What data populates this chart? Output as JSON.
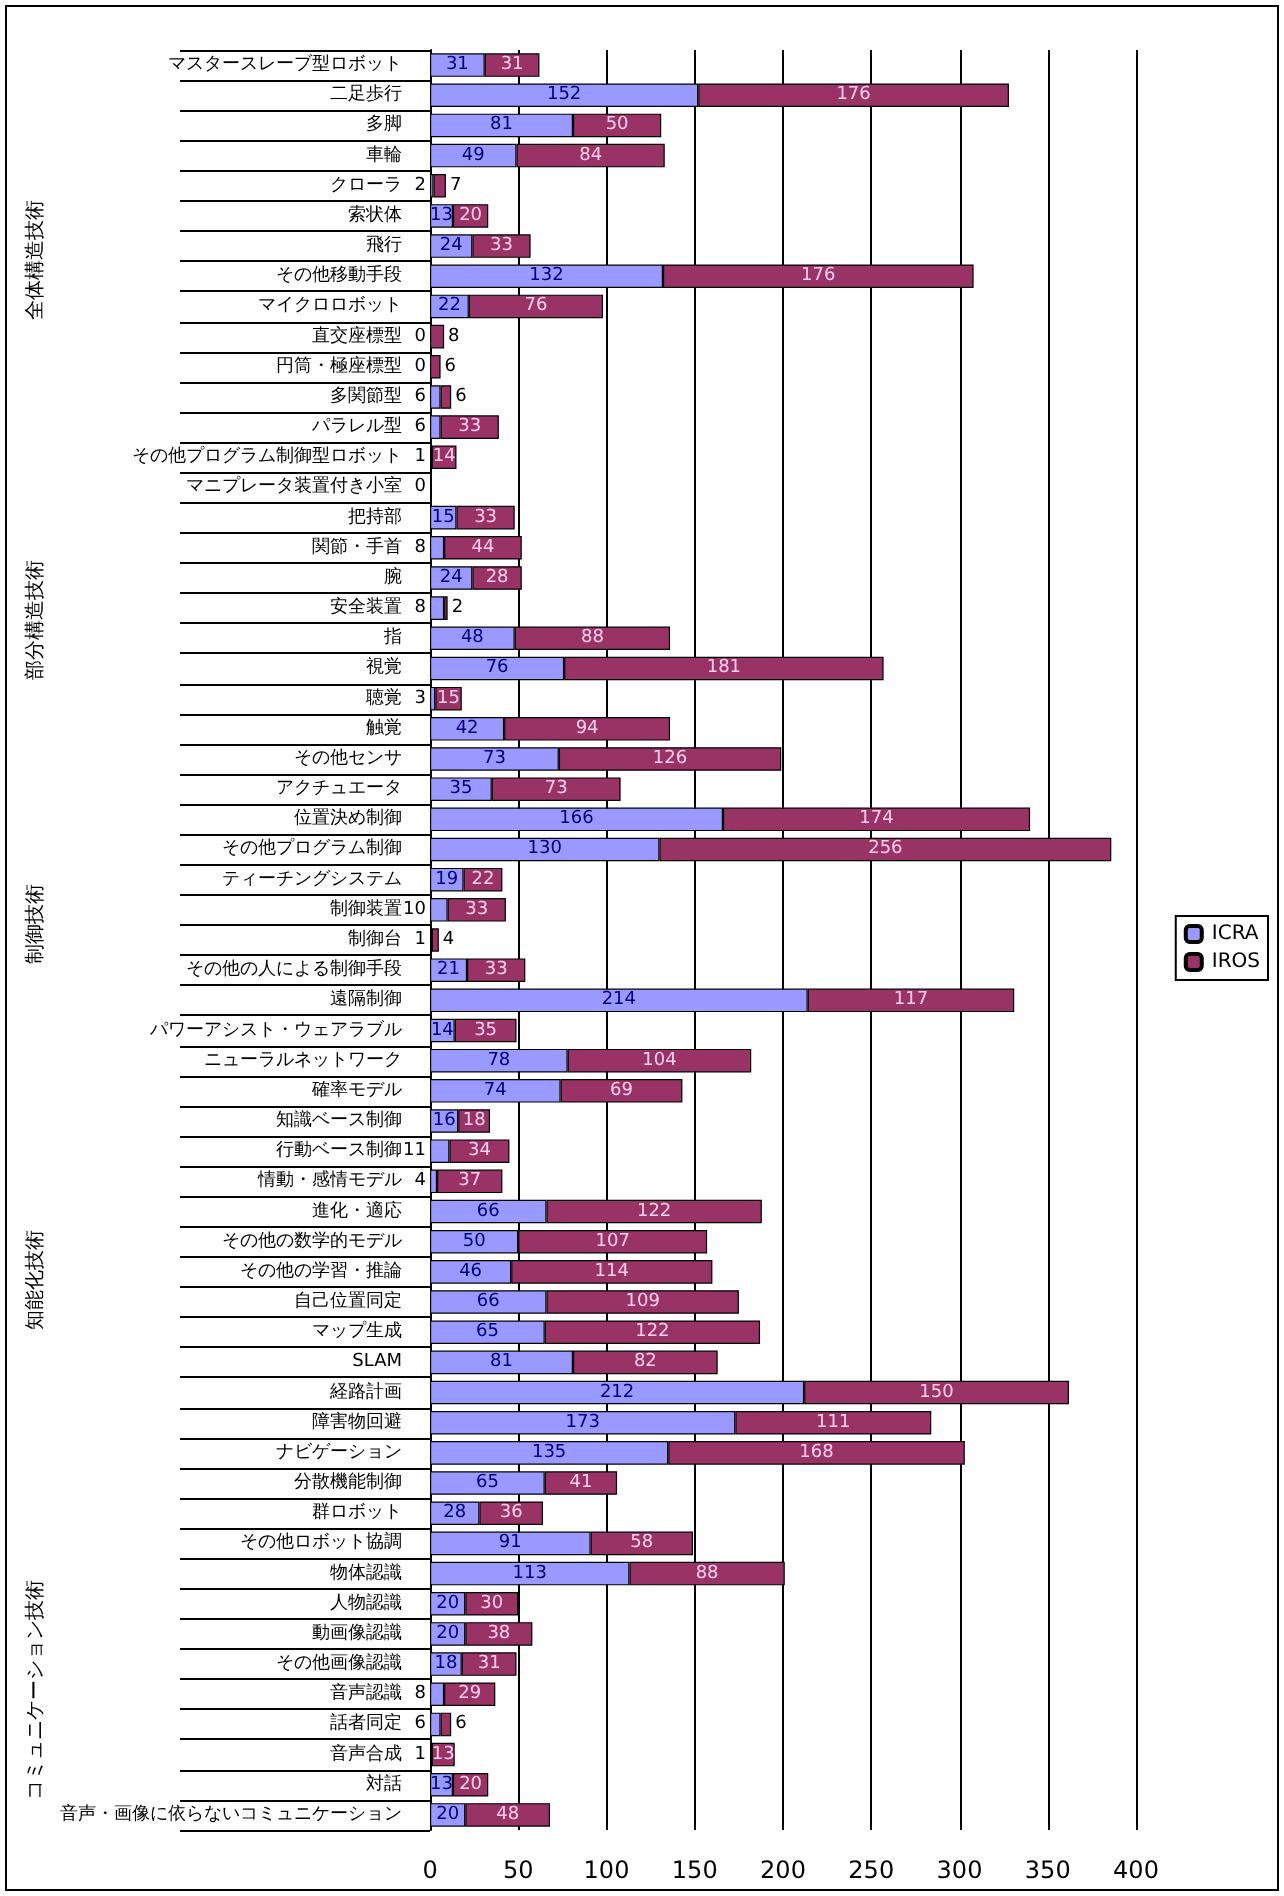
{
  "chart_data": {
    "type": "bar",
    "orientation": "horizontal",
    "stacked": true,
    "grid": "x",
    "legend": "right",
    "categories": [
      "マスタースレーブ型ロボット",
      "二足歩行",
      "多脚",
      "車輪",
      "クローラ",
      "索状体",
      "飛行",
      "その他移動手段",
      "マイクロロボット",
      "直交座標型",
      "円筒・極座標型",
      "多関節型",
      "パラレル型",
      "その他プログラム制御型ロボット",
      "マニプレータ装置付き小室",
      "把持部",
      "関節・手首",
      "腕",
      "安全装置",
      "指",
      "視覚",
      "聴覚",
      "触覚",
      "その他センサ",
      "アクチュエータ",
      "位置決め制御",
      "その他プログラム制御",
      "ティーチングシステム",
      "制御装置",
      "制御台",
      "その他の人による制御手段",
      "遠隔制御",
      "パワーアシスト・ウェアラブル",
      "ニューラルネットワーク",
      "確率モデル",
      "知識ベース制御",
      "行動ベース制御",
      "情動・感情モデル",
      "進化・適応",
      "その他の数学的モデル",
      "その他の学習・推論",
      "自己位置同定",
      "マップ生成",
      "SLAM",
      "経路計画",
      "障害物回避",
      "ナビゲーション",
      "分散機能制御",
      "群ロボット",
      "その他ロボット協調",
      "物体認識",
      "人物認識",
      "動画像認識",
      "その他画像認識",
      "音声認識",
      "話者同定",
      "音声合成",
      "対話",
      "音声・画像に依らないコミュニケーション"
    ],
    "series": [
      {
        "name": "ICRA",
        "color": "#9999ff",
        "values": [
          31,
          152,
          81,
          49,
          2,
          13,
          24,
          132,
          22,
          0,
          0,
          6,
          6,
          1,
          0,
          15,
          8,
          24,
          8,
          48,
          76,
          3,
          42,
          73,
          35,
          166,
          130,
          19,
          10,
          1,
          21,
          214,
          14,
          78,
          74,
          16,
          11,
          4,
          66,
          50,
          46,
          66,
          65,
          81,
          212,
          173,
          135,
          65,
          28,
          91,
          113,
          20,
          20,
          18,
          8,
          6,
          1,
          13,
          20
        ],
        "value_labels": [
          "31",
          "152",
          "81",
          "49",
          "2",
          "13",
          "24",
          "132",
          "22",
          "0",
          "0",
          "6",
          "6",
          "1",
          "0",
          "15",
          "8",
          "24",
          "8",
          "48",
          "76",
          "3",
          "42",
          "73",
          "35",
          "166",
          "130",
          "19",
          "10",
          "1",
          "21",
          "214",
          "14",
          "78",
          "74",
          "16",
          "11",
          "4",
          "66",
          "50",
          "46",
          "66",
          "65",
          "81",
          "212",
          "173",
          "135",
          "65",
          "28",
          "91",
          "113",
          "20",
          "20",
          "18",
          "8",
          "6",
          "1",
          "13",
          "20"
        ]
      },
      {
        "name": "IROS",
        "color": "#993366",
        "values": [
          31,
          176,
          50,
          84,
          7,
          20,
          33,
          176,
          76,
          8,
          6,
          6,
          33,
          14,
          0,
          33,
          44,
          28,
          2,
          88,
          181,
          15,
          94,
          126,
          73,
          174,
          256,
          22,
          33,
          4,
          33,
          117,
          35,
          104,
          69,
          18,
          34,
          37,
          122,
          107,
          114,
          109,
          122,
          82,
          150,
          111,
          168,
          41,
          36,
          58,
          88,
          30,
          38,
          31,
          29,
          6,
          13,
          20,
          48
        ],
        "value_labels": [
          "31",
          "176",
          "50",
          "84",
          "7",
          "20",
          "33",
          "176",
          "76",
          "8",
          "6",
          "6",
          "33",
          "14",
          null,
          "33",
          "44",
          "28",
          "2",
          "88",
          "181",
          "15",
          "94",
          "126",
          "73",
          "174",
          "256",
          "22",
          "33",
          "4",
          "33",
          "117",
          "35",
          "104",
          "69",
          "18",
          "34",
          "37",
          "122",
          "107",
          "114",
          "109",
          "122",
          "82",
          "150",
          "111",
          "168",
          "41",
          "36",
          "58",
          "88",
          "30",
          "38",
          "31",
          "29",
          "6",
          "13",
          "20",
          "48"
        ]
      }
    ],
    "xlim": [
      0,
      400
    ],
    "xticks": [
      0,
      50,
      100,
      150,
      200,
      250,
      300,
      350,
      400
    ],
    "annotations": [
      "全体構造技術",
      "部分構造技術",
      "制御技術",
      "知能化技術",
      "コミュニケーション技術"
    ]
  }
}
